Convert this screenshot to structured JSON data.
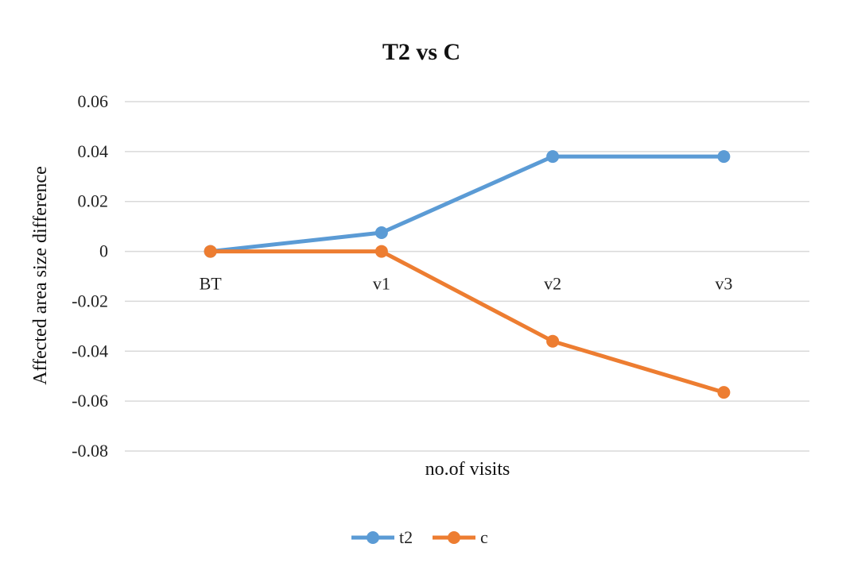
{
  "chart_data": {
    "type": "line",
    "title": "T2 vs C",
    "xlabel": "no.of visits",
    "ylabel": "Affected  area size difference",
    "categories": [
      "BT",
      "v1",
      "v2",
      "v3"
    ],
    "ylim": [
      -0.08,
      0.06
    ],
    "yticks": [
      "0.06",
      "0.04",
      "0.02",
      "0",
      "-0.02",
      "-0.04",
      "-0.06",
      "-0.08"
    ],
    "grid": true,
    "legend_position": "bottom",
    "series": [
      {
        "name": "t2",
        "color": "#5b9bd5",
        "values": [
          0,
          0.0075,
          0.038,
          0.038
        ]
      },
      {
        "name": "c",
        "color": "#ed7d31",
        "values": [
          0,
          0,
          -0.036,
          -0.0565
        ]
      }
    ]
  }
}
